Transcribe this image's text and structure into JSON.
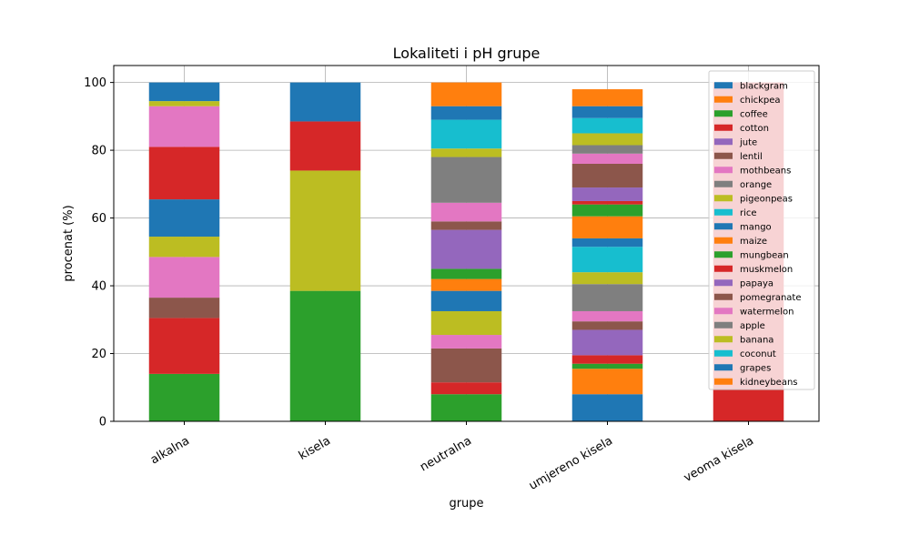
{
  "chart_data": {
    "type": "bar",
    "stacked": true,
    "title": "Lokaliteti i pH grupe",
    "xlabel": "grupe",
    "ylabel": "procenat (%)",
    "ylim": [
      0,
      105
    ],
    "yticks": [
      0,
      20,
      40,
      60,
      80,
      100
    ],
    "grid": true,
    "legend_position": "right (overlapping plot)",
    "categories": [
      "alkalna",
      "kisela",
      "neutralna",
      "umjereno kisela",
      "veoma kisela"
    ],
    "series": [
      {
        "name": "blackgram",
        "color": "#1f77b4",
        "values": [
          0,
          0,
          0,
          8,
          0
        ]
      },
      {
        "name": "chickpea",
        "color": "#ff7f0e",
        "values": [
          0,
          0,
          0,
          7.5,
          0
        ]
      },
      {
        "name": "coffee",
        "color": "#2ca02c",
        "values": [
          14,
          38.5,
          8,
          1.5,
          0
        ]
      },
      {
        "name": "cotton",
        "color": "#d62728",
        "values": [
          16.5,
          0,
          3.5,
          2.5,
          0
        ]
      },
      {
        "name": "jute",
        "color": "#9467bd",
        "values": [
          0,
          0,
          0,
          7.5,
          0
        ]
      },
      {
        "name": "lentil",
        "color": "#8c564b",
        "values": [
          6,
          0,
          10,
          2.5,
          0
        ]
      },
      {
        "name": "mothbeans",
        "color": "#e377c2",
        "values": [
          12,
          0,
          4,
          3,
          0
        ]
      },
      {
        "name": "orange",
        "color": "#7f7f7f",
        "values": [
          0,
          0,
          0,
          8,
          0
        ]
      },
      {
        "name": "pigeonpeas",
        "color": "#bcbd22",
        "values": [
          6,
          35.5,
          7,
          3.5,
          0
        ]
      },
      {
        "name": "rice",
        "color": "#17becf",
        "values": [
          0,
          0,
          0,
          7.5,
          0
        ]
      },
      {
        "name": "mango",
        "color": "#1f77b4",
        "values": [
          11,
          0,
          6,
          2.5,
          0
        ]
      },
      {
        "name": "maize",
        "color": "#ff7f0e",
        "values": [
          0,
          0,
          3.5,
          6.5,
          0
        ]
      },
      {
        "name": "mungbean",
        "color": "#2ca02c",
        "values": [
          0,
          0,
          3,
          3.5,
          0
        ]
      },
      {
        "name": "muskmelon",
        "color": "#d62728",
        "values": [
          15.5,
          14.5,
          0,
          1,
          100
        ]
      },
      {
        "name": "papaya",
        "color": "#9467bd",
        "values": [
          0,
          0,
          11.5,
          4,
          0
        ]
      },
      {
        "name": "pomegranate",
        "color": "#8c564b",
        "values": [
          0,
          0,
          2.5,
          7,
          0
        ]
      },
      {
        "name": "watermelon",
        "color": "#e377c2",
        "values": [
          12,
          0,
          5.5,
          3,
          0
        ]
      },
      {
        "name": "apple",
        "color": "#7f7f7f",
        "values": [
          0,
          0,
          13.5,
          2.5,
          0
        ]
      },
      {
        "name": "banana",
        "color": "#bcbd22",
        "values": [
          1.5,
          0,
          2.5,
          3.5,
          0
        ]
      },
      {
        "name": "coconut",
        "color": "#17becf",
        "values": [
          0,
          0,
          8.5,
          4.5,
          0
        ]
      },
      {
        "name": "grapes",
        "color": "#1f77b4",
        "values": [
          5.5,
          11.5,
          4,
          3.5,
          0
        ]
      },
      {
        "name": "kidneybeans",
        "color": "#ff7f0e",
        "values": [
          0,
          0,
          7,
          5,
          0
        ]
      }
    ]
  }
}
